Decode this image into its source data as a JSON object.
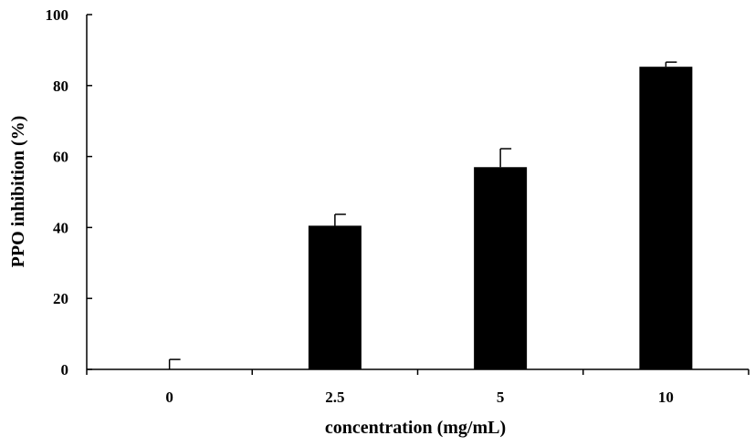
{
  "chart_data": {
    "type": "bar",
    "categories": [
      "0",
      "2.5",
      "5",
      "10"
    ],
    "values": [
      0,
      40.5,
      57,
      85.3
    ],
    "errors": [
      2.8,
      3.2,
      5.2,
      1.3
    ],
    "xlabel": "concentration (mg/mL)",
    "ylabel": "PPO inhibition (%)",
    "ylim": [
      0,
      100
    ],
    "yticks": [
      "0",
      "20",
      "40",
      "60",
      "80",
      "100"
    ],
    "grid": false,
    "bar_color": "#000000"
  }
}
